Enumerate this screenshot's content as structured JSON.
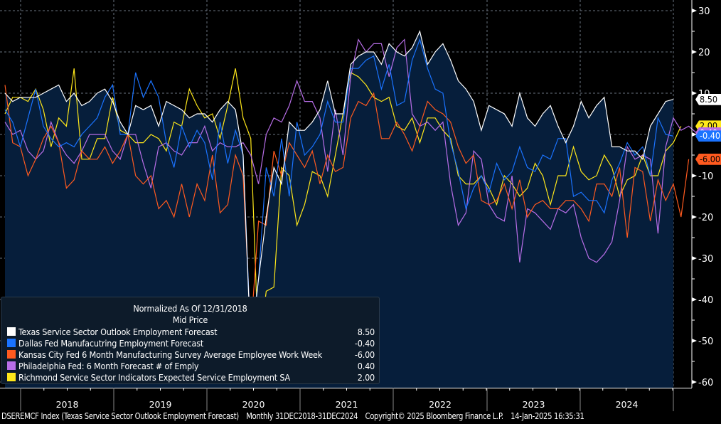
{
  "chart_data": {
    "type": "line",
    "title": "Normalized As Of 12/31/2018",
    "subtitle": "Mid Price",
    "ylim": [
      -60,
      30
    ],
    "yticks": [
      30,
      20,
      10,
      0,
      -10,
      -20,
      -30,
      -40,
      -50,
      -60
    ],
    "ytick_labels": [
      "30",
      "20",
      "10",
      "0",
      "-10",
      "-20",
      "-30",
      "-40",
      "-50",
      "-60"
    ],
    "xlabels": [
      "2018",
      "2019",
      "2020",
      "2021",
      "2022",
      "2023",
      "2024"
    ],
    "x_start": "2017-10",
    "x_end": "2024-12",
    "frequency": "monthly",
    "grid": true,
    "legend_position": "bottom-left",
    "series": [
      {
        "name": "Texas Service Sector Outlook Employment Forecast",
        "color": "#ffffff",
        "last": "8.50",
        "fill": true,
        "values": [
          10,
          8,
          9,
          9,
          9,
          10,
          11,
          12,
          8,
          10,
          7,
          8,
          10,
          11,
          8,
          3,
          0,
          7,
          6,
          7,
          2,
          8,
          7,
          6,
          4,
          5,
          5,
          3,
          6,
          8,
          6,
          -5,
          -52,
          -35,
          -20,
          -8,
          -12,
          3,
          1,
          1,
          3,
          6,
          13,
          5,
          5,
          17,
          19,
          20,
          20,
          17,
          22,
          20,
          19,
          21,
          25,
          17,
          20,
          22,
          18,
          13,
          11,
          8,
          1,
          7,
          6,
          5,
          2,
          10,
          4,
          2,
          5,
          7,
          2,
          -2,
          2,
          8,
          4,
          7,
          9,
          -3,
          -3,
          -4,
          -4,
          -6,
          2,
          5,
          8,
          8.5
        ]
      },
      {
        "name": "Dallas Fed Manufacutring Employment Forecast",
        "color": "#1a73ff",
        "last": "-0.40",
        "fill": false,
        "values": [
          6,
          3,
          -3,
          4,
          11,
          2,
          -1,
          -3,
          -2,
          -3,
          0,
          2,
          4,
          9,
          12,
          0,
          0,
          15,
          9,
          13,
          9,
          -2,
          -8,
          2,
          -3,
          1,
          -2,
          -11,
          3,
          -7,
          1,
          -5,
          -50,
          -35,
          -8,
          -15,
          -1,
          -15,
          3,
          -5,
          -3,
          0,
          8,
          3,
          3,
          16,
          16,
          18,
          19,
          11,
          17,
          7,
          8,
          18,
          23,
          16,
          11,
          10,
          -2,
          -9,
          -18,
          -13,
          -10,
          -14,
          -7,
          -11,
          -9,
          -3,
          -8,
          -9,
          -5,
          -6,
          -1,
          -1,
          -15,
          -14,
          -16,
          -16,
          -19,
          -11,
          -7,
          -2,
          -5,
          -3,
          -10,
          4,
          0,
          -0.4
        ]
      },
      {
        "name": "Kansas City Fed 6 Month Manufacturing Survey Average Employee Work Week",
        "color": "#ff5a1f",
        "last": "-6.00",
        "fill": false,
        "values": [
          12,
          -2,
          -3,
          -10,
          -6,
          -1,
          2,
          -2,
          -13,
          -11,
          -4,
          -6,
          -6,
          -3,
          -7,
          -4,
          0,
          -10,
          -12,
          -10,
          -18,
          -16,
          -20,
          -12,
          -20,
          -12,
          -16,
          -5,
          -19,
          -17,
          -5,
          -10,
          -48,
          -21,
          -22,
          -4,
          -10,
          -2,
          -5,
          -8,
          -4,
          -12,
          -5,
          -9,
          -8,
          4,
          8,
          7,
          10,
          -1,
          -1,
          3,
          0,
          -4,
          2,
          8,
          6,
          5,
          3,
          -3,
          -7,
          -5,
          -16,
          -17,
          -16,
          -12,
          -18,
          -11,
          -20,
          -17,
          -16,
          -18,
          -18,
          -16,
          -16,
          -18,
          -21,
          -12,
          -12,
          -15,
          -8,
          -25,
          -8,
          -9,
          -21,
          -11,
          -16,
          -12,
          -20,
          -6
        ]
      },
      {
        "name": "Philadelphia Fed: 6 Month Forecast # of Emply",
        "color": "#b86ee8",
        "last": "0.40",
        "fill": false,
        "values": [
          3,
          0,
          1,
          -4,
          -6,
          -4,
          3,
          -2,
          -5,
          -7,
          -4,
          0,
          0,
          0,
          -4,
          -6,
          0,
          0,
          -7,
          -13,
          -3,
          -2,
          -4,
          -5,
          -2,
          -2,
          2,
          -4,
          -2,
          -3,
          -3,
          -2,
          -5,
          -12,
          0,
          4,
          3,
          7,
          13,
          8,
          8,
          4,
          -9,
          6,
          -5,
          14,
          23,
          20,
          22,
          22,
          14,
          21,
          23,
          5,
          2,
          3,
          1,
          3,
          -12,
          -22,
          -19,
          -4,
          -6,
          -17,
          -20,
          -21,
          -10,
          -31,
          -18,
          -19,
          -21,
          -23,
          -18,
          -19,
          -17,
          -25,
          -30,
          -31,
          -29,
          -26,
          -16,
          -3,
          -6,
          -5,
          -6,
          -24,
          -3,
          4,
          1,
          2,
          0.4
        ]
      },
      {
        "name": "Richmond Service Sector Indicators Expected Service Employment SA",
        "color": "#ffe81a",
        "last": "2.00",
        "fill": false,
        "values": [
          5,
          9,
          9,
          8,
          11,
          6,
          -3,
          4,
          2,
          16,
          -6,
          -6,
          -1,
          -1,
          9,
          1,
          0,
          -2,
          -2,
          0,
          -1,
          -4,
          3,
          2,
          11,
          7,
          4,
          5,
          -1,
          7,
          16,
          4,
          -1,
          -53,
          -38,
          -37,
          -8,
          -10,
          -22,
          -17,
          -9,
          -10,
          -15,
          -5,
          5,
          15,
          14,
          12,
          9,
          8,
          9,
          2,
          1,
          4,
          -2,
          4,
          4,
          1,
          -1,
          -10,
          -12,
          -12,
          -10,
          -13,
          -17,
          -10,
          -12,
          -15,
          -13,
          -7,
          -10,
          -17,
          -10,
          -10,
          -3,
          -9,
          -11,
          -10,
          -5,
          -8,
          -15,
          -11,
          -10,
          -5,
          -10,
          -10,
          -4,
          -2,
          2
        ]
      }
    ]
  },
  "legend": {
    "title": "Normalized As Of 12/31/2018",
    "subtitle": "Mid Price",
    "items": [
      {
        "label": "Texas Service Sector Outlook Employment Forecast",
        "value": "8.50",
        "color": "#ffffff"
      },
      {
        "label": "Dallas Fed Manufacutring Employment Forecast",
        "value": "-0.40",
        "color": "#1a73ff"
      },
      {
        "label": "Kansas City Fed 6 Month Manufacturing Survey Average Employee Work Week",
        "value": "-6.00",
        "color": "#ff5a1f"
      },
      {
        "label": "Philadelphia Fed: 6 Month Forecast # of Emply",
        "value": "0.40",
        "color": "#b86ee8"
      },
      {
        "label": "Richmond Service Sector Indicators Expected Service Employment SA",
        "value": "2.00",
        "color": "#ffe81a"
      }
    ]
  },
  "tags": [
    {
      "value": "8.50",
      "bg": "#ffffff",
      "fg": "#000000",
      "at": 8.5
    },
    {
      "value": "2.00",
      "bg": "#ffe81a",
      "fg": "#000000",
      "at": 2.0
    },
    {
      "value": "0.40",
      "bg": "#b86ee8",
      "fg": "#ffffff",
      "at": 0.4
    },
    {
      "value": "-0.40",
      "bg": "#1a73ff",
      "fg": "#ffffff",
      "at": -0.4
    },
    {
      "value": "-6.00",
      "bg": "#ff5a1f",
      "fg": "#000000",
      "at": -6.0
    }
  ],
  "footer": {
    "ticker": "DSEREMCF Index (Texas Service Sector Outlook Employment Forecast)",
    "range": "Monthly 31DEC2018-31DEC2024",
    "copyright": "Copyright© 2025 Bloomberg Finance L.P.",
    "timestamp": "14-Jan-2025 16:35:31"
  }
}
